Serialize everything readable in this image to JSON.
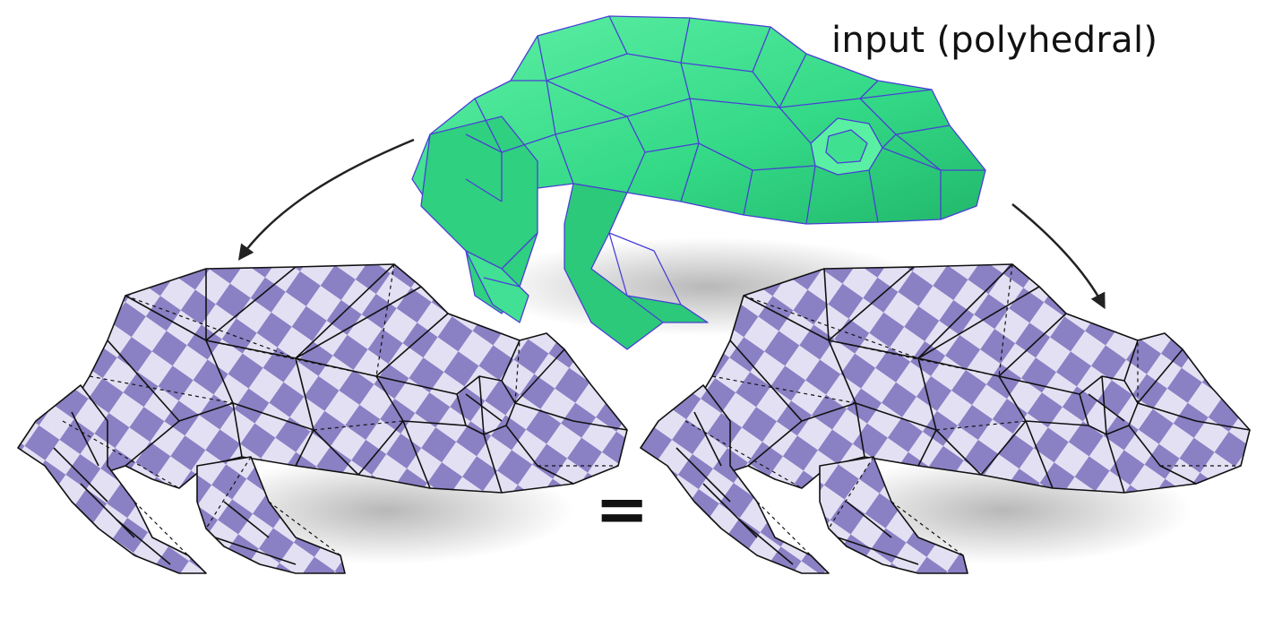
{
  "figure": {
    "caption": "input (polyhedral)",
    "operator": "=",
    "models": [
      {
        "role": "input-mesh",
        "icon": "green-polyhedral-frog"
      },
      {
        "role": "output-mesh-left",
        "icon": "checkered-triangulated-frog"
      },
      {
        "role": "output-mesh-right",
        "icon": "checkered-triangulated-frog"
      }
    ],
    "colors": {
      "input_fill": "#3be38f",
      "input_edges": "#4a3fd6",
      "output_light": "#e4e0f3",
      "output_dark": "#8a80c4",
      "edges": "#111111"
    }
  }
}
